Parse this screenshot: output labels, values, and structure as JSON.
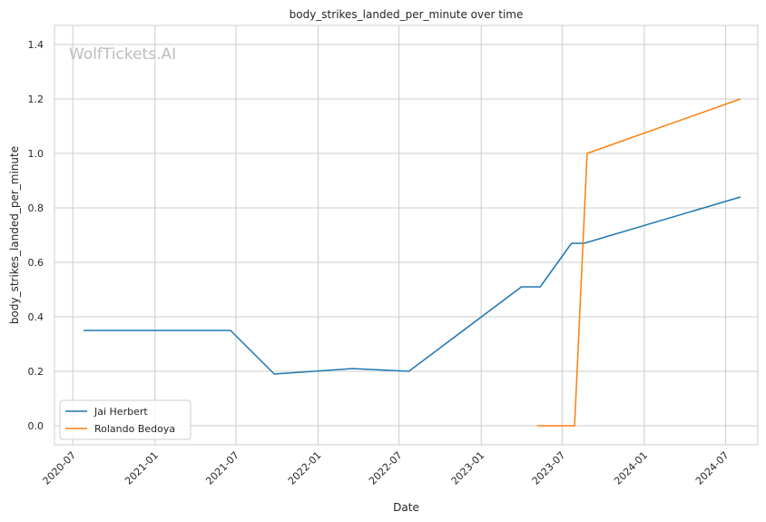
{
  "chart_data": {
    "type": "line",
    "title": "body_strikes_landed_per_minute over time",
    "xlabel": "Date",
    "ylabel": "body_strikes_landed_per_minute",
    "watermark": "WolfTickets.AI",
    "x_ticks": [
      "2020-07",
      "2021-01",
      "2021-07",
      "2022-01",
      "2022-07",
      "2023-01",
      "2023-07",
      "2024-01",
      "2024-07"
    ],
    "y_ticks": [
      "0.0",
      "0.2",
      "0.4",
      "0.6",
      "0.8",
      "1.0",
      "1.2",
      "1.4"
    ],
    "xlim": [
      "2020-05-21",
      "2024-09-11"
    ],
    "ylim": [
      -0.07,
      1.47
    ],
    "grid": true,
    "legend_position": "lower-left",
    "series": [
      {
        "name": "Jai Herbert",
        "color": "#1f77b4",
        "points": [
          {
            "x": "2020-07-25",
            "y": 0.35
          },
          {
            "x": "2021-06-19",
            "y": 0.35
          },
          {
            "x": "2021-09-25",
            "y": 0.19
          },
          {
            "x": "2022-03-19",
            "y": 0.21
          },
          {
            "x": "2022-07-23",
            "y": 0.2
          },
          {
            "x": "2023-04-01",
            "y": 0.51
          },
          {
            "x": "2023-05-13",
            "y": 0.51
          },
          {
            "x": "2023-07-22",
            "y": 0.67
          },
          {
            "x": "2023-08-19",
            "y": 0.67
          },
          {
            "x": "2024-08-03",
            "y": 0.84
          }
        ]
      },
      {
        "name": "Rolando Bedoya",
        "color": "#ff7f0e",
        "points": [
          {
            "x": "2023-05-06",
            "y": 0.0
          },
          {
            "x": "2023-07-29",
            "y": 0.0
          },
          {
            "x": "2023-08-26",
            "y": 1.0
          },
          {
            "x": "2024-08-03",
            "y": 1.2
          }
        ]
      }
    ]
  }
}
